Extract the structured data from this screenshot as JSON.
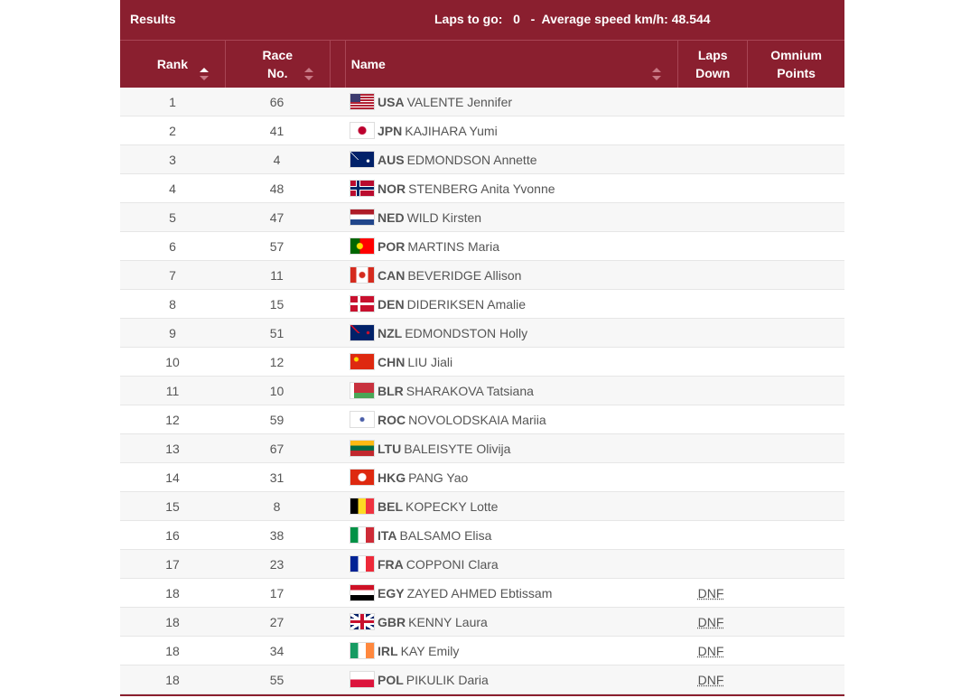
{
  "header": {
    "title": "Results",
    "laps_label": "Laps to go:",
    "laps_value": "0",
    "separator": "-",
    "speed_label": "Average speed km/h:",
    "speed_value": "48.544"
  },
  "accent_color": "#8a1f2f",
  "columns": {
    "rank": "Rank",
    "race_no": "Race No.",
    "name": "Name",
    "laps_down": "Laps Down",
    "omnium_points": "Omnium Points"
  },
  "sort": {
    "active_column": "rank",
    "direction": "ascending"
  },
  "rows": [
    {
      "rank": "1",
      "race_no": "66",
      "noc": "USA",
      "name": "VALENTE Jennifer",
      "laps_down": "",
      "points": ""
    },
    {
      "rank": "2",
      "race_no": "41",
      "noc": "JPN",
      "name": "KAJIHARA Yumi",
      "laps_down": "",
      "points": ""
    },
    {
      "rank": "3",
      "race_no": "4",
      "noc": "AUS",
      "name": "EDMONDSON Annette",
      "laps_down": "",
      "points": ""
    },
    {
      "rank": "4",
      "race_no": "48",
      "noc": "NOR",
      "name": "STENBERG Anita Yvonne",
      "laps_down": "",
      "points": ""
    },
    {
      "rank": "5",
      "race_no": "47",
      "noc": "NED",
      "name": "WILD Kirsten",
      "laps_down": "",
      "points": ""
    },
    {
      "rank": "6",
      "race_no": "57",
      "noc": "POR",
      "name": "MARTINS Maria",
      "laps_down": "",
      "points": ""
    },
    {
      "rank": "7",
      "race_no": "11",
      "noc": "CAN",
      "name": "BEVERIDGE Allison",
      "laps_down": "",
      "points": ""
    },
    {
      "rank": "8",
      "race_no": "15",
      "noc": "DEN",
      "name": "DIDERIKSEN Amalie",
      "laps_down": "",
      "points": ""
    },
    {
      "rank": "9",
      "race_no": "51",
      "noc": "NZL",
      "name": "EDMONDSTON Holly",
      "laps_down": "",
      "points": ""
    },
    {
      "rank": "10",
      "race_no": "12",
      "noc": "CHN",
      "name": "LIU Jiali",
      "laps_down": "",
      "points": ""
    },
    {
      "rank": "11",
      "race_no": "10",
      "noc": "BLR",
      "name": "SHARAKOVA Tatsiana",
      "laps_down": "",
      "points": ""
    },
    {
      "rank": "12",
      "race_no": "59",
      "noc": "ROC",
      "name": "NOVOLODSKAIA Mariia",
      "laps_down": "",
      "points": ""
    },
    {
      "rank": "13",
      "race_no": "67",
      "noc": "LTU",
      "name": "BALEISYTE Olivija",
      "laps_down": "",
      "points": ""
    },
    {
      "rank": "14",
      "race_no": "31",
      "noc": "HKG",
      "name": "PANG Yao",
      "laps_down": "",
      "points": ""
    },
    {
      "rank": "15",
      "race_no": "8",
      "noc": "BEL",
      "name": "KOPECKY Lotte",
      "laps_down": "",
      "points": ""
    },
    {
      "rank": "16",
      "race_no": "38",
      "noc": "ITA",
      "name": "BALSAMO Elisa",
      "laps_down": "",
      "points": ""
    },
    {
      "rank": "17",
      "race_no": "23",
      "noc": "FRA",
      "name": "COPPONI Clara",
      "laps_down": "",
      "points": ""
    },
    {
      "rank": "18",
      "race_no": "17",
      "noc": "EGY",
      "name": "ZAYED AHMED Ebtissam",
      "laps_down": "DNF",
      "points": ""
    },
    {
      "rank": "18",
      "race_no": "27",
      "noc": "GBR",
      "name": "KENNY Laura",
      "laps_down": "DNF",
      "points": ""
    },
    {
      "rank": "18",
      "race_no": "34",
      "noc": "IRL",
      "name": "KAY Emily",
      "laps_down": "DNF",
      "points": ""
    },
    {
      "rank": "18",
      "race_no": "55",
      "noc": "POL",
      "name": "PIKULIK Daria",
      "laps_down": "DNF",
      "points": ""
    }
  ]
}
